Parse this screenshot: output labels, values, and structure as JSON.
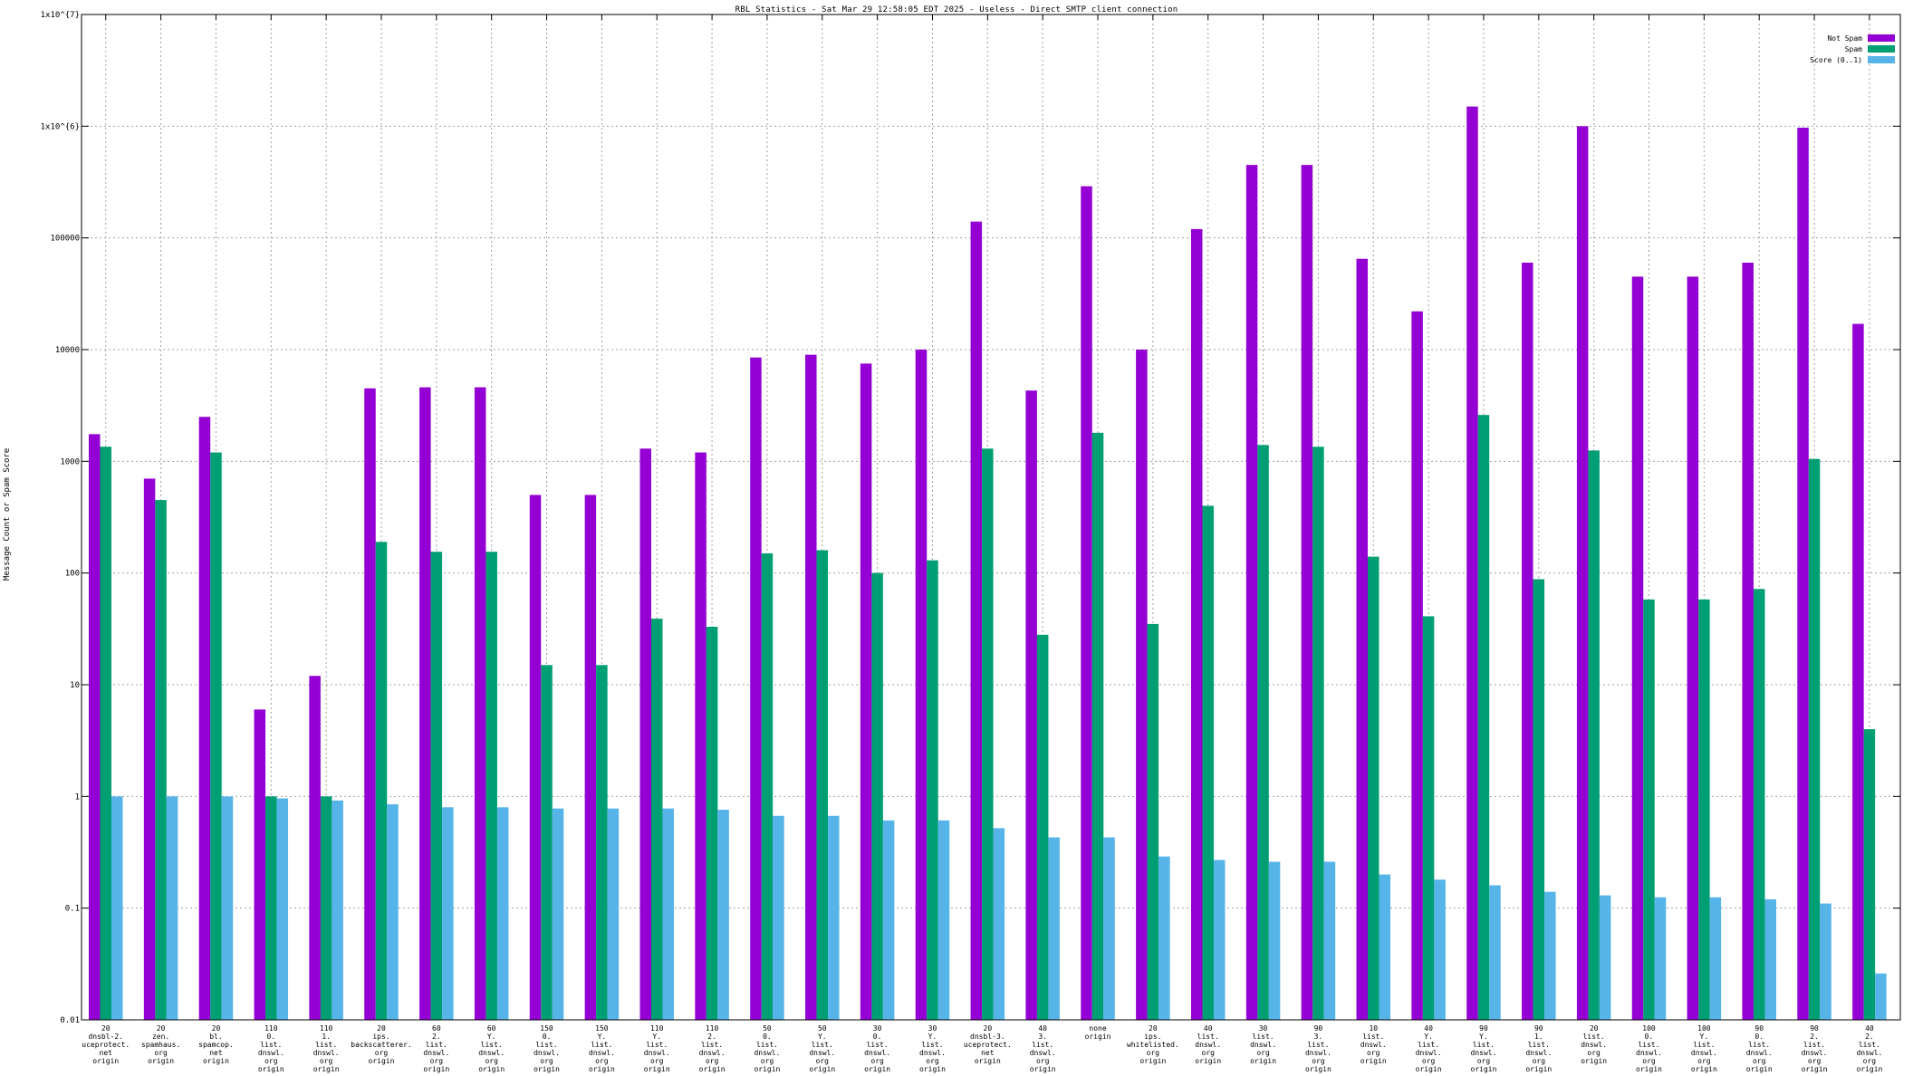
{
  "chart_data": {
    "type": "bar",
    "title": "RBL Statistics - Sat Mar 29 12:58:05 EDT 2025 - Useless - Direct SMTP client connection",
    "xlabel": "",
    "ylabel": "Message Count or Spam Score",
    "yscale": "log",
    "ylim": [
      0.01,
      10000000
    ],
    "ytick_labels": [
      "0.01",
      "0.1",
      "1",
      "10",
      "100",
      "1000",
      "10000",
      "100000",
      "1x10^{6}",
      "1x10^{7}"
    ],
    "grid": true,
    "legend_position": "top-right",
    "categories": [
      [
        "20",
        "dnsbl-2.",
        "uceprotect.",
        "net",
        "origin"
      ],
      [
        "20",
        "zen.",
        "spamhaus.",
        "org",
        "origin"
      ],
      [
        "20",
        "bl.",
        "spamcop.",
        "net",
        "origin"
      ],
      [
        "110",
        "0.",
        "list.",
        "dnswl.",
        "org",
        "origin"
      ],
      [
        "110",
        "1.",
        "list.",
        "dnswl.",
        "org",
        "origin"
      ],
      [
        "20",
        "ips.",
        "backscatterer.",
        "org",
        "origin"
      ],
      [
        "60",
        "2.",
        "list.",
        "dnswl.",
        "org",
        "origin"
      ],
      [
        "60",
        "Y.",
        "list.",
        "dnswl.",
        "org",
        "origin"
      ],
      [
        "150",
        "0.",
        "list.",
        "dnswl.",
        "org",
        "origin"
      ],
      [
        "150",
        "Y.",
        "list.",
        "dnswl.",
        "org",
        "origin"
      ],
      [
        "110",
        "Y.",
        "list.",
        "dnswl.",
        "org",
        "origin"
      ],
      [
        "110",
        "2.",
        "list.",
        "dnswl.",
        "org",
        "origin"
      ],
      [
        "50",
        "0.",
        "list.",
        "dnswl.",
        "org",
        "origin"
      ],
      [
        "50",
        "Y.",
        "list.",
        "dnswl.",
        "org",
        "origin"
      ],
      [
        "30",
        "0.",
        "list.",
        "dnswl.",
        "org",
        "origin"
      ],
      [
        "30",
        "Y.",
        "list.",
        "dnswl.",
        "org",
        "origin"
      ],
      [
        "20",
        "dnsbl-3.",
        "uceprotect.",
        "net",
        "origin"
      ],
      [
        "40",
        "3.",
        "list.",
        "dnswl.",
        "org",
        "origin"
      ],
      [
        "none",
        "origin"
      ],
      [
        "20",
        "ips.",
        "whitelisted.",
        "org",
        "origin"
      ],
      [
        "40",
        "list.",
        "dnswl.",
        "org",
        "origin"
      ],
      [
        "30",
        "list.",
        "dnswl.",
        "org",
        "origin"
      ],
      [
        "90",
        "3.",
        "list.",
        "dnswl.",
        "org",
        "origin"
      ],
      [
        "10",
        "list.",
        "dnswl.",
        "org",
        "origin"
      ],
      [
        "40",
        "Y.",
        "list.",
        "dnswl.",
        "org",
        "origin"
      ],
      [
        "90",
        "Y.",
        "list.",
        "dnswl.",
        "org",
        "origin"
      ],
      [
        "90",
        "1.",
        "list.",
        "dnswl.",
        "org",
        "origin"
      ],
      [
        "20",
        "list.",
        "dnswl.",
        "org",
        "origin"
      ],
      [
        "100",
        "0.",
        "list.",
        "dnswl.",
        "org",
        "origin"
      ],
      [
        "100",
        "Y.",
        "list.",
        "dnswl.",
        "org",
        "origin"
      ],
      [
        "90",
        "0.",
        "list.",
        "dnswl.",
        "org",
        "origin"
      ],
      [
        "90",
        "2.",
        "list.",
        "dnswl.",
        "org",
        "origin"
      ],
      [
        "40",
        "2.",
        "list.",
        "dnswl.",
        "org",
        "origin"
      ]
    ],
    "series": [
      {
        "name": "Not Spam",
        "color": "#9400d3",
        "values": [
          1750,
          700,
          2500,
          6,
          12,
          4500,
          4600,
          4600,
          500,
          500,
          1300,
          1200,
          8500,
          9000,
          7500,
          10000,
          140000,
          4300,
          290000,
          10000,
          120000,
          450000,
          450000,
          65000,
          22000,
          1500000,
          60000,
          1000000,
          45000,
          45000,
          60000,
          970000,
          17000
        ]
      },
      {
        "name": "Spam",
        "color": "#009e73",
        "values": [
          1350,
          450,
          1200,
          1,
          1,
          190,
          155,
          155,
          15,
          15,
          39,
          33,
          150,
          160,
          100,
          130,
          1300,
          28,
          1800,
          35,
          400,
          1400,
          1350,
          140,
          41,
          2600,
          88,
          1250,
          58,
          58,
          72,
          1050,
          4
        ]
      },
      {
        "name": "Score (0..1)",
        "color": "#56b4e9",
        "values": [
          1.0,
          1.0,
          1.0,
          0.96,
          0.92,
          0.85,
          0.8,
          0.8,
          0.78,
          0.78,
          0.78,
          0.76,
          0.67,
          0.67,
          0.61,
          0.61,
          0.52,
          0.43,
          0.43,
          0.29,
          0.27,
          0.26,
          0.26,
          0.2,
          0.18,
          0.16,
          0.14,
          0.13,
          0.125,
          0.125,
          0.12,
          0.11,
          0.026
        ]
      }
    ]
  }
}
